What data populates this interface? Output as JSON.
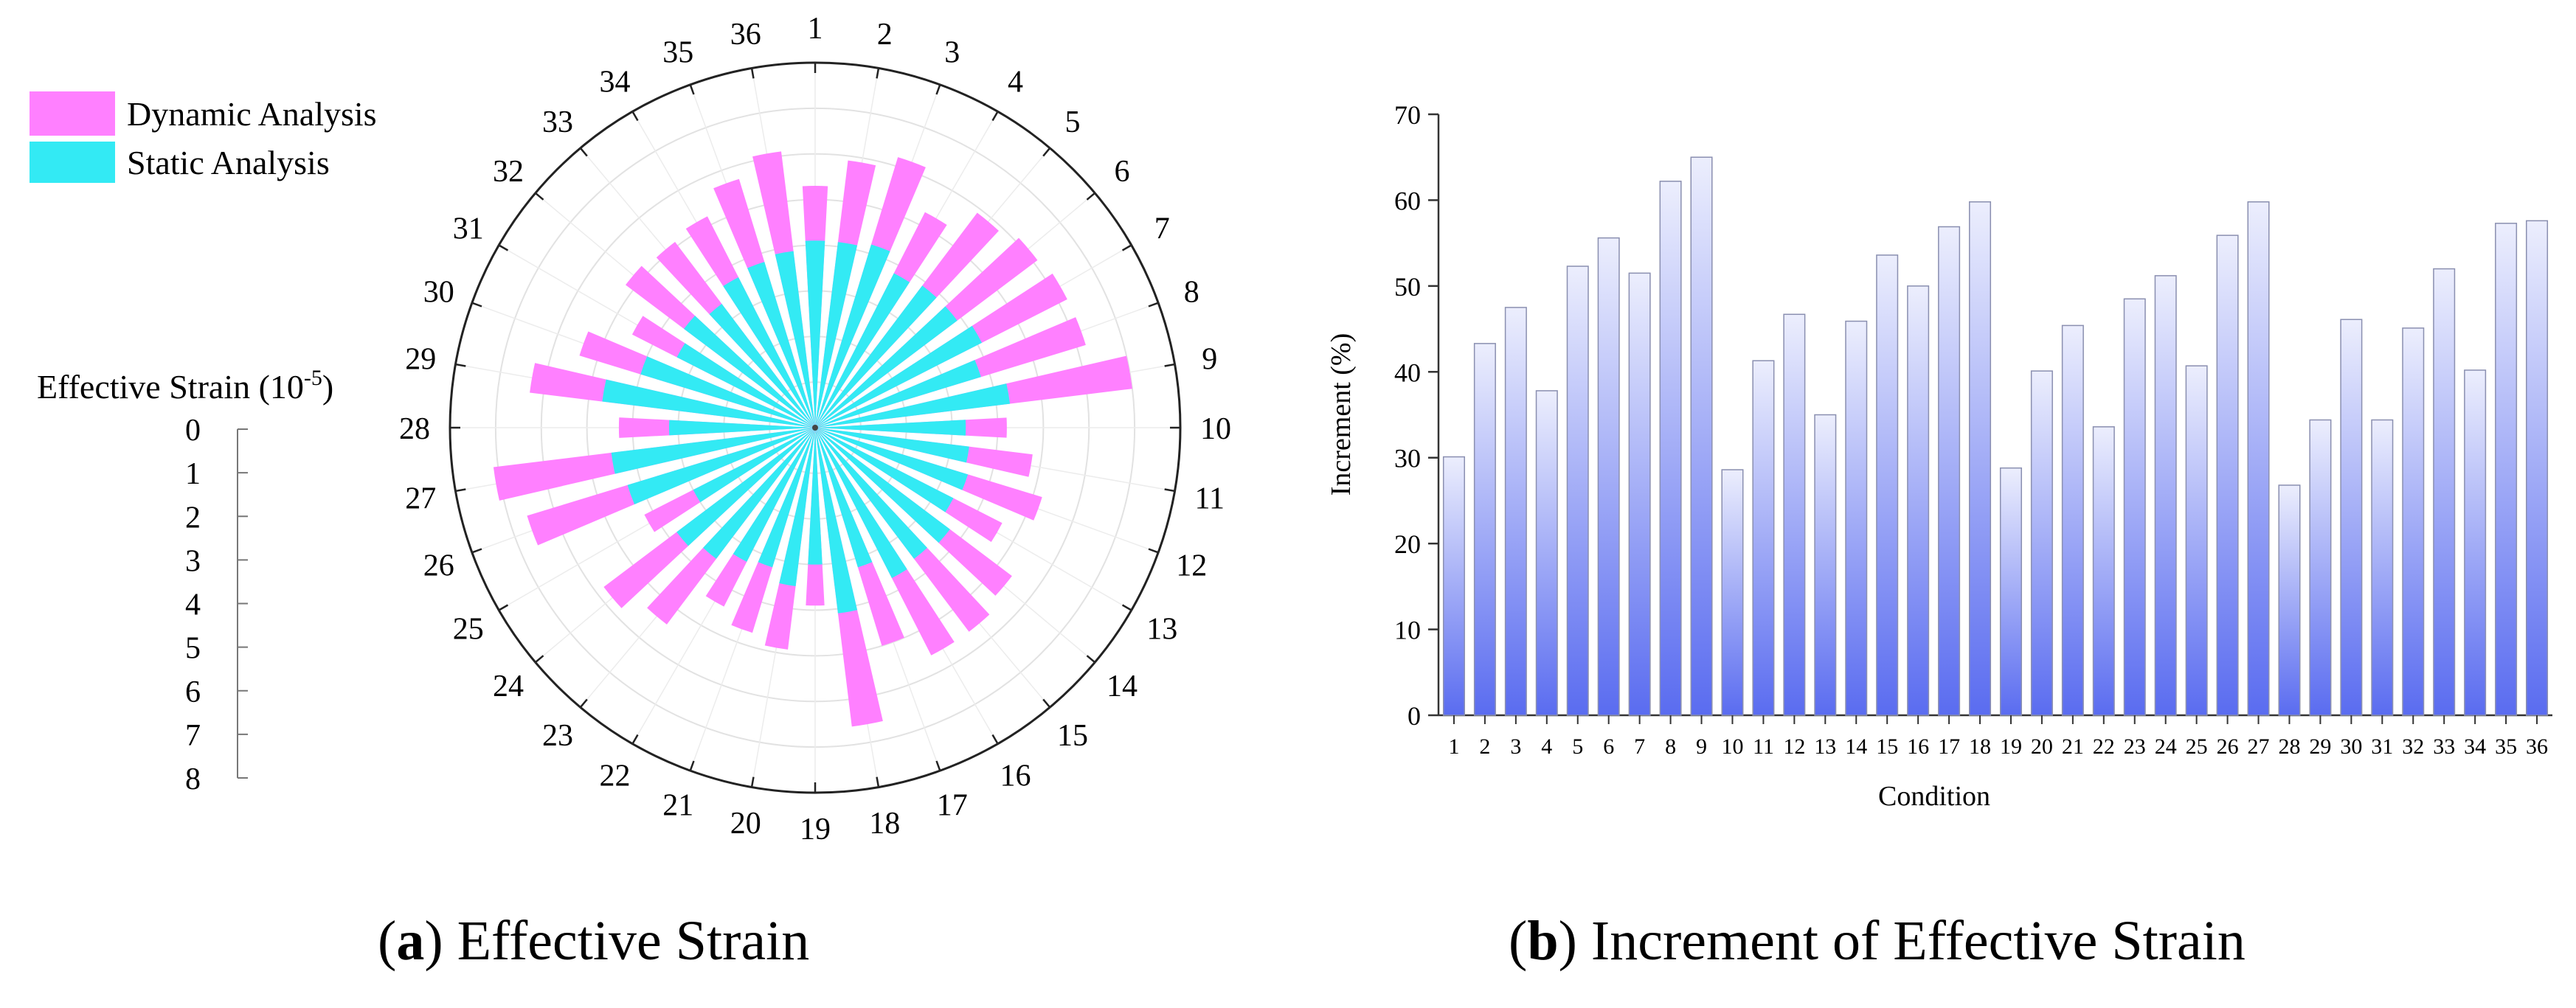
{
  "charts": [
    {
      "panel": "a",
      "caption": {
        "letter": "a",
        "text": "Effective Strain"
      },
      "chart_data": {
        "type": "polar-bar",
        "categories": [
          "1",
          "2",
          "3",
          "4",
          "5",
          "6",
          "7",
          "8",
          "9",
          "10",
          "11",
          "12",
          "13",
          "14",
          "15",
          "16",
          "17",
          "18",
          "19",
          "20",
          "21",
          "22",
          "23",
          "24",
          "25",
          "26",
          "27",
          "28",
          "29",
          "30",
          "31",
          "32",
          "33",
          "34",
          "35",
          "36"
        ],
        "series": [
          {
            "name": "Dynamic Analysis",
            "color": "#ff80ff",
            "values": [
              5.3,
              5.9,
              6.2,
              5.3,
              5.9,
              6.1,
              6.2,
              6.2,
              7.0,
              4.2,
              4.8,
              5.2,
              4.6,
              5.4,
              5.6,
              5.6,
              5.0,
              6.6,
              3.9,
              4.9,
              4.7,
              4.4,
              5.4,
              5.8,
              4.2,
              6.6,
              7.1,
              4.3,
              6.3,
              5.4,
              4.5,
              5.2,
              5.1,
              5.2,
              5.7,
              6.1
            ]
          },
          {
            "name": "Static Analysis",
            "color": "#33eaf4",
            "values": [
              4.1,
              4.1,
              4.2,
              3.8,
              3.9,
              3.9,
              4.1,
              3.8,
              4.3,
              3.3,
              3.4,
              3.5,
              3.4,
              3.7,
              3.6,
              3.7,
              3.2,
              4.1,
              3.0,
              3.5,
              3.2,
              3.3,
              3.6,
              3.8,
              3.0,
              4.3,
              4.5,
              3.2,
              4.7,
              4.0,
              3.4,
              3.6,
              3.4,
              3.7,
              3.8,
              3.9
            ]
          }
        ],
        "radial_axis": {
          "label": "Effective Strain (10",
          "label_sup": "-5",
          "label_end": ")",
          "ticks": [
            "0",
            "1",
            "2",
            "3",
            "4",
            "5",
            "6",
            "7",
            "8"
          ],
          "range": [
            0,
            8
          ]
        },
        "legend": [
          "Dynamic Analysis",
          "Static Analysis"
        ],
        "legend_position": "top-left"
      }
    },
    {
      "panel": "b",
      "caption": {
        "letter": "b",
        "text": "Increment of Effective Strain"
      },
      "chart_data": {
        "type": "bar",
        "categories": [
          "1",
          "2",
          "3",
          "4",
          "5",
          "6",
          "7",
          "8",
          "9",
          "10",
          "11",
          "12",
          "13",
          "14",
          "15",
          "16",
          "17",
          "18",
          "19",
          "20",
          "21",
          "22",
          "23",
          "24",
          "25",
          "26",
          "27",
          "28",
          "29",
          "30",
          "31",
          "32",
          "33",
          "34",
          "35",
          "36"
        ],
        "values": [
          30.1,
          43.3,
          47.5,
          37.8,
          52.3,
          55.6,
          51.5,
          62.2,
          65.0,
          28.6,
          41.3,
          46.7,
          35.0,
          45.9,
          53.6,
          50.0,
          56.9,
          59.8,
          28.8,
          40.1,
          45.4,
          33.6,
          48.5,
          51.2,
          40.7,
          55.9,
          59.8,
          26.8,
          34.4,
          46.1,
          34.4,
          45.1,
          52.0,
          40.2,
          57.3,
          57.6
        ],
        "xlabel": "Condition",
        "ylabel": "Increment (%)",
        "ylim": [
          0,
          70
        ],
        "yticks": [
          "0",
          "10",
          "20",
          "30",
          "40",
          "50",
          "60",
          "70"
        ],
        "bar_color_top": "#eceefd",
        "bar_color_bottom": "#5a6cf0"
      }
    }
  ]
}
